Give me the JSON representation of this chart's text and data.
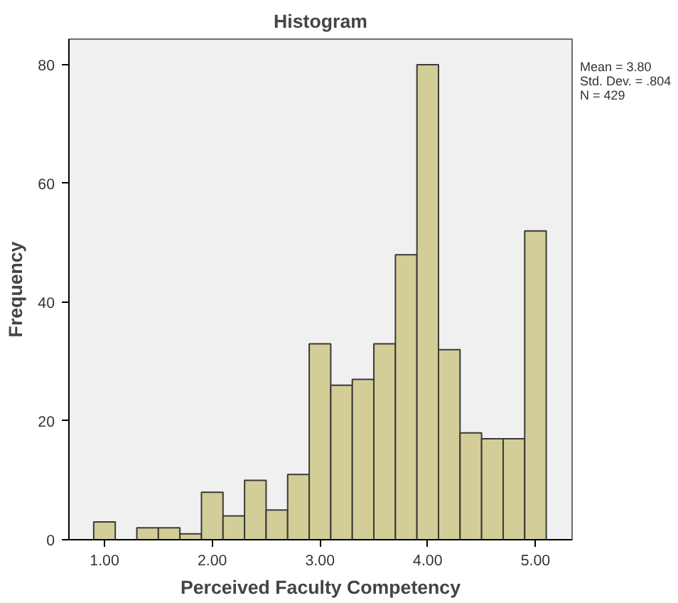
{
  "chart_data": {
    "type": "histogram",
    "title": "Histogram",
    "xlabel": "Perceived Faculty Competency",
    "ylabel": "Frequency",
    "bins": [
      0.9,
      1.1,
      1.3,
      1.5,
      1.7,
      1.9,
      2.1,
      2.3,
      2.5,
      2.7,
      2.9,
      3.1,
      3.3,
      3.5,
      3.7,
      3.9,
      4.1,
      4.3,
      4.5,
      4.7,
      4.9,
      5.1
    ],
    "values": [
      3,
      0,
      2,
      2,
      1,
      8,
      4,
      10,
      5,
      11,
      33,
      26,
      27,
      33,
      48,
      80,
      32,
      18,
      17,
      17,
      52
    ],
    "color": "#d3ce97",
    "xlim": [
      0.67,
      5.34
    ],
    "ylim": [
      0,
      84.3
    ],
    "xticks": [
      {
        "value": 1,
        "label": "1.00"
      },
      {
        "value": 2,
        "label": "2.00"
      },
      {
        "value": 3,
        "label": "3.00"
      },
      {
        "value": 4,
        "label": "4.00"
      },
      {
        "value": 5,
        "label": "5.00"
      }
    ],
    "yticks": [
      0,
      20,
      40,
      60,
      80
    ],
    "grid": false,
    "annotations": [
      "Mean = 3.80",
      "Std. Dev. = .804",
      "N = 429"
    ]
  }
}
